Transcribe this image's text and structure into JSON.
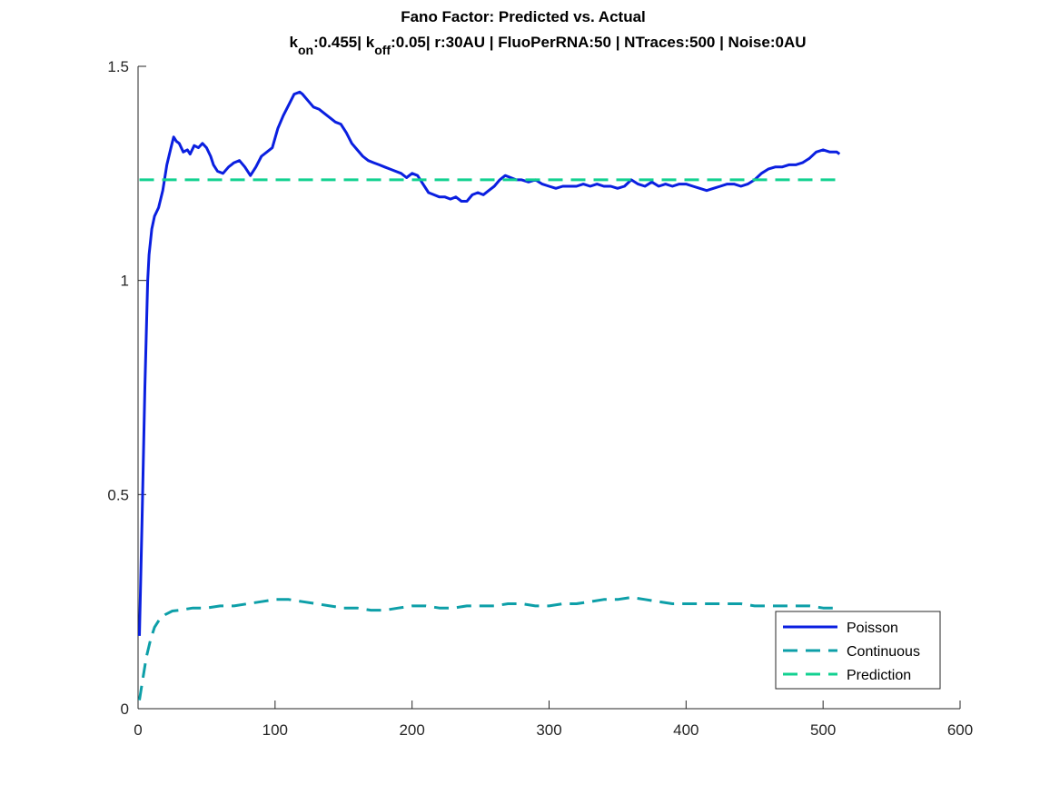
{
  "chart_data": {
    "type": "line",
    "title": "Fano Factor: Predicted vs. Actual",
    "subtitle": {
      "k_on_prefix": "k",
      "k_on_sub": "on",
      "k_on_value": ":0.455| ",
      "k_off_prefix": "k",
      "k_off_sub": "off",
      "k_off_value": ":0.05| r:30AU | FluoPerRNA:50 | NTraces:500 | Noise:0AU"
    },
    "xlabel": "",
    "ylabel": "",
    "xlim": [
      0,
      600
    ],
    "ylim": [
      0,
      1.5
    ],
    "xticks": [
      0,
      100,
      200,
      300,
      400,
      500,
      600
    ],
    "xtick_labels": [
      "0",
      "100",
      "200",
      "300",
      "400",
      "500",
      "600"
    ],
    "yticks": [
      0,
      0.5,
      1,
      1.5
    ],
    "ytick_labels": [
      "0",
      "0.5",
      "1",
      "1.5"
    ],
    "grid": false,
    "legend_position": "bottom-right",
    "series": [
      {
        "name": "Poisson",
        "color": "#0a1fe0",
        "style": "solid",
        "x": [
          1,
          3,
          5,
          7,
          8,
          10,
          12,
          15,
          18,
          21,
          24,
          26,
          28,
          30,
          33,
          36,
          38,
          41,
          44,
          47,
          50,
          53,
          55,
          58,
          62,
          66,
          70,
          74,
          78,
          82,
          86,
          90,
          94,
          98,
          102,
          106,
          110,
          114,
          118,
          120,
          124,
          128,
          132,
          136,
          140,
          144,
          148,
          152,
          156,
          160,
          164,
          168,
          172,
          176,
          180,
          184,
          188,
          192,
          196,
          200,
          204,
          208,
          212,
          216,
          220,
          224,
          228,
          232,
          236,
          240,
          244,
          248,
          252,
          256,
          260,
          264,
          268,
          272,
          276,
          280,
          285,
          290,
          295,
          300,
          305,
          310,
          315,
          320,
          325,
          330,
          335,
          340,
          345,
          350,
          355,
          360,
          365,
          370,
          375,
          380,
          385,
          390,
          395,
          400,
          405,
          410,
          415,
          420,
          425,
          430,
          435,
          440,
          445,
          450,
          455,
          460,
          465,
          470,
          475,
          480,
          485,
          490,
          495,
          500,
          505,
          510,
          512
        ],
        "y": [
          0.17,
          0.45,
          0.75,
          1.0,
          1.06,
          1.12,
          1.15,
          1.17,
          1.21,
          1.27,
          1.31,
          1.335,
          1.325,
          1.32,
          1.3,
          1.305,
          1.295,
          1.315,
          1.31,
          1.32,
          1.31,
          1.29,
          1.27,
          1.255,
          1.25,
          1.265,
          1.275,
          1.28,
          1.265,
          1.245,
          1.265,
          1.29,
          1.3,
          1.31,
          1.355,
          1.385,
          1.41,
          1.435,
          1.44,
          1.435,
          1.42,
          1.405,
          1.4,
          1.39,
          1.38,
          1.37,
          1.365,
          1.345,
          1.32,
          1.305,
          1.29,
          1.28,
          1.275,
          1.27,
          1.265,
          1.26,
          1.255,
          1.25,
          1.24,
          1.25,
          1.245,
          1.225,
          1.205,
          1.2,
          1.195,
          1.195,
          1.19,
          1.195,
          1.185,
          1.185,
          1.2,
          1.205,
          1.2,
          1.21,
          1.22,
          1.235,
          1.245,
          1.24,
          1.235,
          1.235,
          1.23,
          1.235,
          1.225,
          1.22,
          1.215,
          1.22,
          1.22,
          1.22,
          1.225,
          1.22,
          1.225,
          1.22,
          1.22,
          1.215,
          1.22,
          1.235,
          1.225,
          1.22,
          1.23,
          1.22,
          1.225,
          1.22,
          1.225,
          1.225,
          1.22,
          1.215,
          1.21,
          1.215,
          1.22,
          1.225,
          1.225,
          1.22,
          1.225,
          1.235,
          1.25,
          1.26,
          1.265,
          1.265,
          1.27,
          1.27,
          1.275,
          1.285,
          1.3,
          1.305,
          1.3,
          1.3,
          1.295
        ]
      },
      {
        "name": "Continuous",
        "color": "#0d9fa8",
        "style": "dashed",
        "x": [
          1,
          3,
          6,
          9,
          12,
          16,
          20,
          25,
          30,
          40,
          50,
          60,
          70,
          80,
          90,
          100,
          110,
          120,
          130,
          140,
          150,
          160,
          170,
          180,
          190,
          200,
          210,
          220,
          230,
          240,
          250,
          260,
          270,
          280,
          290,
          300,
          310,
          320,
          330,
          340,
          350,
          360,
          370,
          380,
          390,
          400,
          410,
          420,
          430,
          440,
          450,
          460,
          470,
          480,
          490,
          500,
          512
        ],
        "y": [
          0.02,
          0.06,
          0.12,
          0.16,
          0.19,
          0.21,
          0.22,
          0.228,
          0.23,
          0.235,
          0.235,
          0.24,
          0.24,
          0.245,
          0.25,
          0.255,
          0.255,
          0.25,
          0.245,
          0.24,
          0.235,
          0.235,
          0.23,
          0.23,
          0.235,
          0.24,
          0.24,
          0.235,
          0.235,
          0.24,
          0.24,
          0.24,
          0.245,
          0.245,
          0.24,
          0.24,
          0.245,
          0.245,
          0.25,
          0.255,
          0.255,
          0.26,
          0.255,
          0.25,
          0.245,
          0.245,
          0.245,
          0.245,
          0.245,
          0.245,
          0.24,
          0.24,
          0.24,
          0.24,
          0.24,
          0.235,
          0.235
        ]
      },
      {
        "name": "Prediction",
        "color": "#12d190",
        "style": "dashed",
        "x": [
          1,
          512
        ],
        "y": [
          1.235,
          1.235
        ]
      }
    ]
  }
}
